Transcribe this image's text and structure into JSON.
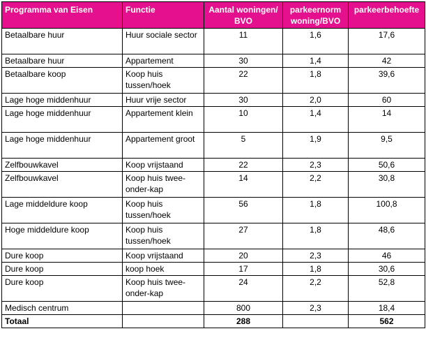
{
  "colors": {
    "header_bg": "#e4108e",
    "header_text": "#ffffff"
  },
  "headers": [
    "Programma van Eisen",
    "Functie",
    "Aantal woningen/ BVO",
    "parkeernorm woning/BVO",
    "parkeerbehoefte"
  ],
  "rows": [
    [
      "Betaalbare huur",
      "Huur sociale sector",
      "11",
      "1,6",
      "17,6"
    ],
    [
      "Betaalbare huur",
      "Appartement",
      "30",
      "1,4",
      "42"
    ],
    [
      "Betaalbare koop",
      "Koop huis tussen/hoek",
      "22",
      "1,8",
      "39,6"
    ],
    [
      "Lage hoge middenhuur",
      "Huur vrije sector",
      "30",
      "2,0",
      "60"
    ],
    [
      "Lage hoge middenhuur",
      "Appartement klein",
      "10",
      "1,4",
      "14"
    ],
    [
      "Lage hoge middenhuur",
      "Appartement groot",
      "5",
      "1,9",
      "9,5"
    ],
    [
      "Zelfbouwkavel",
      "Koop vrijstaand",
      "22",
      "2,3",
      "50,6"
    ],
    [
      "Zelfbouwkavel",
      "Koop huis twee-onder-kap",
      "14",
      "2,2",
      "30,8"
    ],
    [
      "Lage middeldure koop",
      "Koop huis tussen/hoek",
      "56",
      "1,8",
      "100,8"
    ],
    [
      "Hoge middeldure koop",
      "Koop huis tussen/hoek",
      "27",
      "1,8",
      "48,6"
    ],
    [
      "Dure koop",
      "Koop vrijstaand",
      "20",
      "2,3",
      "46"
    ],
    [
      "Dure koop",
      "koop hoek",
      "17",
      "1,8",
      "30,6"
    ],
    [
      "Dure koop",
      "Koop huis twee-onder-kap",
      "24",
      "2,2",
      "52,8"
    ],
    [
      "Medisch centrum",
      "",
      "800",
      "2,3",
      "18,4"
    ]
  ],
  "total": [
    "Totaal",
    "",
    "288",
    "",
    "562"
  ]
}
